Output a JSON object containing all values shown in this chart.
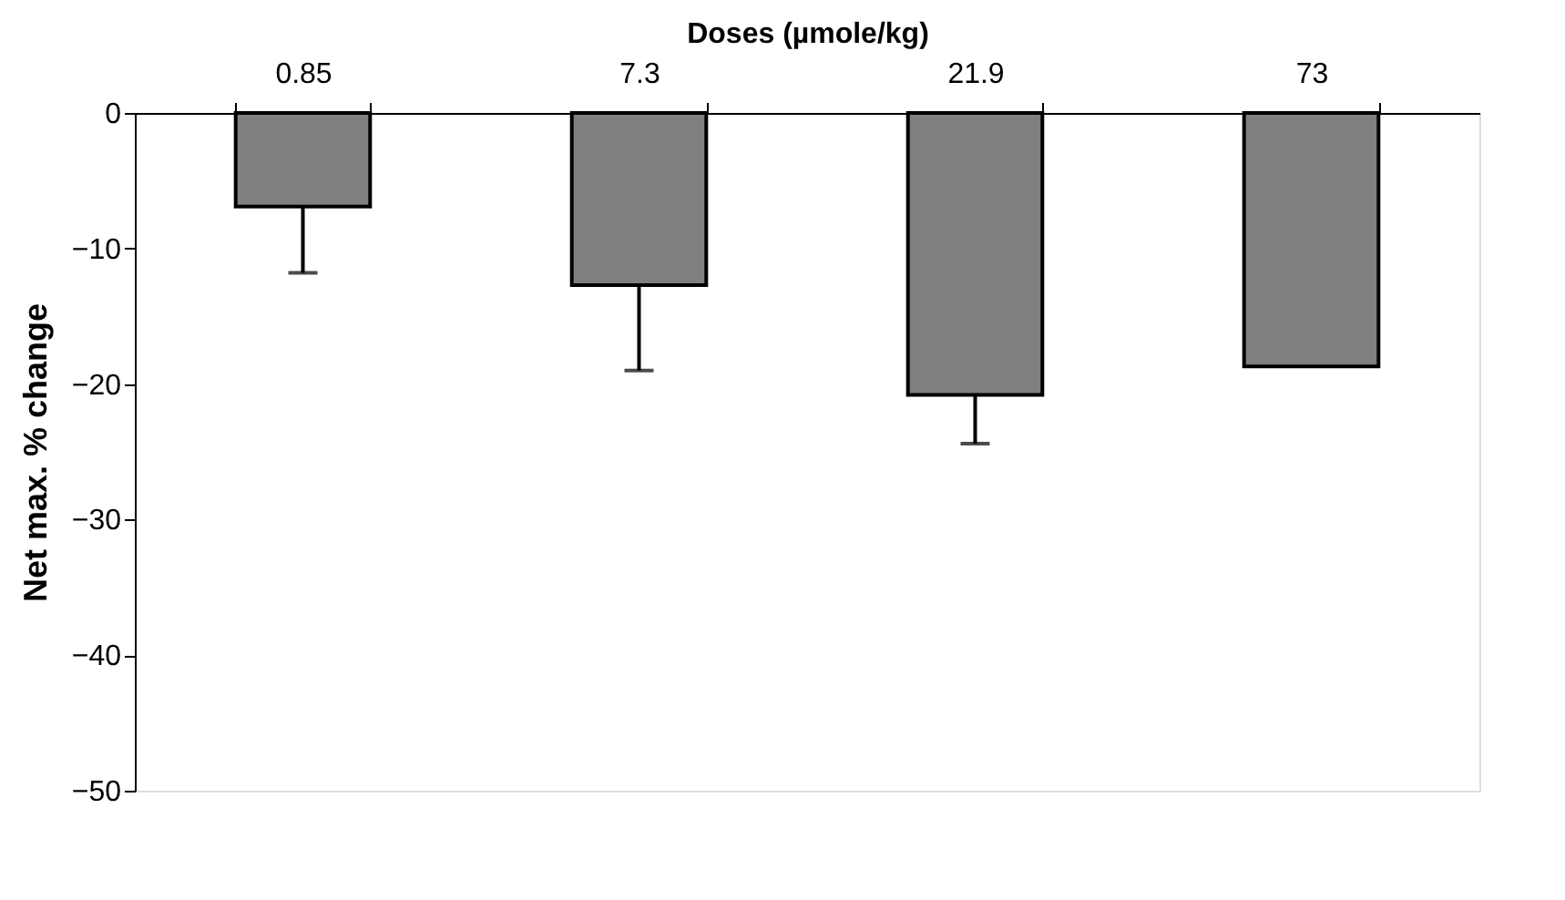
{
  "chart_data": {
    "type": "bar",
    "xlabel": "Doses (µmole/kg)",
    "ylabel": "Net max. % change",
    "categories": [
      "0.85",
      "7.3",
      "21.9",
      "73"
    ],
    "values": [
      -6.9,
      -12.7,
      -20.8,
      -18.7
    ],
    "errors": [
      4.9,
      6.3,
      3.6,
      null
    ],
    "color": "#7f7f7f",
    "ylim": [
      -50,
      0
    ],
    "yticks": [
      -50,
      -40,
      -30,
      -20,
      -10,
      0
    ],
    "grid": false
  }
}
